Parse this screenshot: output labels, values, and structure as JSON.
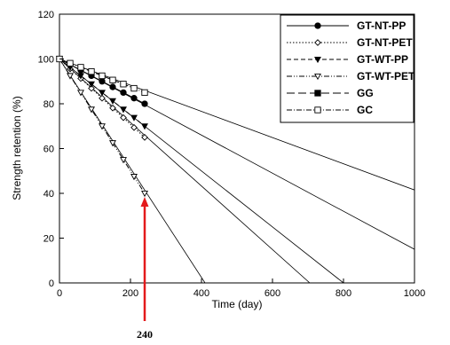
{
  "chart_data": {
    "type": "line",
    "xlabel": "Time (day)",
    "ylabel": "Strength retention (%)",
    "xlim": [
      0,
      1000
    ],
    "ylim": [
      0,
      120
    ],
    "xticks": [
      0,
      200,
      400,
      600,
      800,
      1000
    ],
    "xtick_labels": [
      "0",
      "200",
      "400",
      "600",
      "800",
      "1000"
    ],
    "yticks": [
      0,
      20,
      40,
      60,
      80,
      100,
      120
    ],
    "ytick_labels": [
      "0",
      "20",
      "40",
      "60",
      "80",
      "100",
      "120"
    ],
    "grid": false,
    "legend_position": "top-right",
    "series": [
      {
        "name": "GT-NT-PP",
        "marker": "filled-circle",
        "line_style": "solid",
        "points": [
          [
            0,
            100
          ],
          [
            30,
            97.5
          ],
          [
            60,
            95
          ],
          [
            90,
            92.5
          ],
          [
            120,
            90
          ],
          [
            150,
            87.5
          ],
          [
            180,
            85
          ],
          [
            210,
            82.5
          ],
          [
            240,
            80
          ]
        ],
        "trend": [
          [
            0,
            100
          ],
          [
            1000,
            15
          ]
        ]
      },
      {
        "name": "GT-NT-PET",
        "marker": "open-diamond",
        "line_style": "dotted",
        "points": [
          [
            0,
            100
          ],
          [
            30,
            95.6
          ],
          [
            60,
            91.3
          ],
          [
            90,
            86.9
          ],
          [
            120,
            82.5
          ],
          [
            150,
            78.1
          ],
          [
            180,
            73.8
          ],
          [
            210,
            69.4
          ],
          [
            240,
            65
          ]
        ],
        "trend": [
          [
            0,
            100
          ],
          [
            705,
            0
          ]
        ]
      },
      {
        "name": "GT-WT-PP",
        "marker": "filled-triangle-down",
        "line_style": "dashed",
        "points": [
          [
            0,
            100
          ],
          [
            30,
            96.3
          ],
          [
            60,
            92.5
          ],
          [
            90,
            88.8
          ],
          [
            120,
            85
          ],
          [
            150,
            81.3
          ],
          [
            180,
            77.5
          ],
          [
            210,
            73.8
          ],
          [
            240,
            70
          ]
        ],
        "trend": [
          [
            0,
            100
          ],
          [
            800,
            0
          ]
        ]
      },
      {
        "name": "GT-WT-PET",
        "marker": "open-triangle-down",
        "line_style": "dash-dot-dot",
        "points": [
          [
            0,
            100
          ],
          [
            30,
            92.5
          ],
          [
            60,
            85
          ],
          [
            90,
            77.5
          ],
          [
            120,
            70
          ],
          [
            150,
            62.5
          ],
          [
            180,
            55
          ],
          [
            210,
            47.5
          ],
          [
            240,
            40
          ]
        ],
        "trend": [
          [
            0,
            100
          ],
          [
            410,
            0
          ]
        ]
      },
      {
        "name": "GG",
        "marker": "filled-square",
        "line_style": "long-dash",
        "points": [],
        "trend": []
      },
      {
        "name": "GC",
        "marker": "open-square",
        "line_style": "dash-dot",
        "points": [
          [
            0,
            100
          ],
          [
            30,
            98.1
          ],
          [
            60,
            96.3
          ],
          [
            90,
            94.4
          ],
          [
            120,
            92.5
          ],
          [
            150,
            90.6
          ],
          [
            180,
            88.8
          ],
          [
            210,
            86.9
          ],
          [
            240,
            85
          ]
        ],
        "trend": [
          [
            0,
            100
          ],
          [
            1000,
            41.5
          ]
        ]
      }
    ],
    "annotation": {
      "text": "240",
      "x": 240,
      "color": "#e31a1c"
    }
  }
}
